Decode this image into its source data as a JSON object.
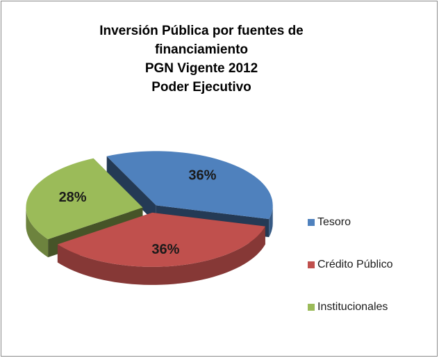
{
  "chart_data": {
    "type": "pie3d",
    "title": [
      "Inversión Pública por fuentes de",
      "financiamiento",
      "PGN Vigente 2012",
      "Poder Ejecutivo"
    ],
    "categories": [
      "Tesoro",
      "Crédito Público",
      "Institucionales"
    ],
    "values": [
      36,
      36,
      28
    ],
    "value_labels": [
      "36%",
      "36%",
      "28%"
    ],
    "colors": [
      "#4f81bd",
      "#c0504d",
      "#9bbb59"
    ],
    "legend": "right"
  }
}
